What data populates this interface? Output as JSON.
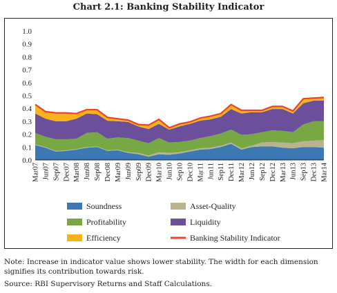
{
  "chart_data": {
    "type": "area",
    "title": "Chart 2.1: Banking Stability Indicator",
    "categories": [
      "Mar07",
      "Jun07",
      "Sep07",
      "Dec07",
      "Mar08",
      "Jun08",
      "Sep08",
      "Dec08",
      "Mar09",
      "Jun09",
      "Sep09",
      "Dec09",
      "Mar10",
      "Jun10",
      "Sep10",
      "Dec10",
      "Mar11",
      "Jun11",
      "Sep11",
      "Dec11",
      "Mar12",
      "Jun12",
      "Sep12",
      "Dec12",
      "Mar13",
      "Jun13",
      "Sep13",
      "Dec13",
      "Mar14"
    ],
    "ylim": [
      0,
      1.0
    ],
    "yticks": [
      "0.0",
      "0.1",
      "0.2",
      "0.3",
      "0.4",
      "0.5",
      "0.6",
      "0.7",
      "0.8",
      "0.9",
      "1.0"
    ],
    "stacked": true,
    "grid": false,
    "legend_position": "bottom",
    "series": [
      {
        "name": "Soundness",
        "color": "#3c78b4",
        "values": [
          0.115,
          0.095,
          0.065,
          0.07,
          0.08,
          0.095,
          0.1,
          0.07,
          0.075,
          0.055,
          0.045,
          0.025,
          0.045,
          0.04,
          0.05,
          0.065,
          0.08,
          0.085,
          0.1,
          0.125,
          0.08,
          0.1,
          0.105,
          0.105,
          0.095,
          0.09,
          0.1,
          0.1,
          0.095
        ]
      },
      {
        "name": "Asset-Quality",
        "color": "#b9b38f",
        "values": [
          0.005,
          0.005,
          0.005,
          0.005,
          0.005,
          0.005,
          0.005,
          0.005,
          0.005,
          0.005,
          0.01,
          0.01,
          0.015,
          0.015,
          0.01,
          0.01,
          0.01,
          0.01,
          0.01,
          0.01,
          0.01,
          0.01,
          0.03,
          0.035,
          0.04,
          0.04,
          0.045,
          0.05,
          0.06
        ]
      },
      {
        "name": "Profitability",
        "color": "#77a844",
        "values": [
          0.09,
          0.08,
          0.09,
          0.085,
          0.08,
          0.11,
          0.11,
          0.09,
          0.095,
          0.11,
          0.095,
          0.095,
          0.11,
          0.08,
          0.08,
          0.075,
          0.08,
          0.09,
          0.095,
          0.1,
          0.105,
          0.09,
          0.08,
          0.09,
          0.09,
          0.085,
          0.13,
          0.15,
          0.145
        ]
      },
      {
        "name": "Liquidity",
        "color": "#6b4f9a",
        "values": [
          0.15,
          0.14,
          0.14,
          0.14,
          0.155,
          0.15,
          0.14,
          0.14,
          0.125,
          0.125,
          0.11,
          0.11,
          0.11,
          0.1,
          0.12,
          0.13,
          0.135,
          0.13,
          0.13,
          0.16,
          0.165,
          0.17,
          0.155,
          0.165,
          0.17,
          0.145,
          0.165,
          0.16,
          0.16
        ]
      },
      {
        "name": "Efficiency",
        "color": "#fab21b",
        "values": [
          0.07,
          0.055,
          0.065,
          0.065,
          0.04,
          0.03,
          0.035,
          0.025,
          0.02,
          0.015,
          0.015,
          0.03,
          0.035,
          0.015,
          0.02,
          0.015,
          0.02,
          0.025,
          0.025,
          0.035,
          0.025,
          0.015,
          0.015,
          0.02,
          0.02,
          0.02,
          0.035,
          0.02,
          0.025
        ]
      }
    ],
    "line_series": {
      "name": "Banking Stability Indicator",
      "color": "#e8442e",
      "values": [
        0.43,
        0.375,
        0.365,
        0.365,
        0.36,
        0.39,
        0.39,
        0.33,
        0.32,
        0.31,
        0.275,
        0.27,
        0.315,
        0.25,
        0.28,
        0.295,
        0.325,
        0.34,
        0.36,
        0.43,
        0.385,
        0.385,
        0.385,
        0.415,
        0.415,
        0.38,
        0.475,
        0.48,
        0.485
      ]
    }
  },
  "legend": {
    "soundness": "Soundness",
    "asset_quality": "Asset-Quality",
    "profitability": "Profitability",
    "liquidity": "Liquidity",
    "efficiency": "Efficiency",
    "bsi": "Banking Stability Indicator"
  },
  "footnotes": {
    "note_label": "Note:",
    "note_text": "Increase in indicator value shows lower stability. The width for each dimension signifies its contribution towards risk.",
    "source_label": "Source:",
    "source_text": "RBI Supervisory Returns and Staff Calculations."
  }
}
